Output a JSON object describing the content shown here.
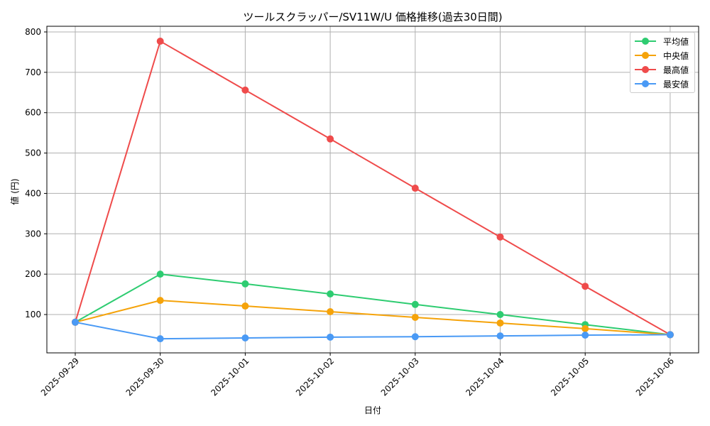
{
  "chart_data": {
    "type": "line",
    "title": "ツールスクラッパー/SV11W/U 価格推移(過去30日間)",
    "xlabel": "日付",
    "ylabel": "値 (円)",
    "x": [
      "2025-09-29",
      "2025-09-30",
      "2025-10-01",
      "2025-10-02",
      "2025-10-03",
      "2025-10-04",
      "2025-10-05",
      "2025-10-06"
    ],
    "yticks": [
      100,
      200,
      300,
      400,
      500,
      600,
      700,
      800
    ],
    "ylim": [
      18,
      838
    ],
    "grid": true,
    "legend_position": "upper right",
    "series": [
      {
        "name": "平均値",
        "color": "#2ecc71",
        "values": [
          81,
          200,
          176,
          151,
          125,
          100,
          75,
          50
        ]
      },
      {
        "name": "中央値",
        "color": "#f5a30a",
        "values": [
          81,
          135,
          121,
          107,
          93,
          79,
          65,
          50
        ]
      },
      {
        "name": "最高値",
        "color": "#ef4b4b",
        "values": [
          81,
          777,
          656,
          535,
          413,
          292,
          170,
          50
        ]
      },
      {
        "name": "最安値",
        "color": "#4a9af5",
        "values": [
          81,
          40,
          42,
          44,
          45,
          47,
          49,
          50
        ]
      }
    ]
  }
}
